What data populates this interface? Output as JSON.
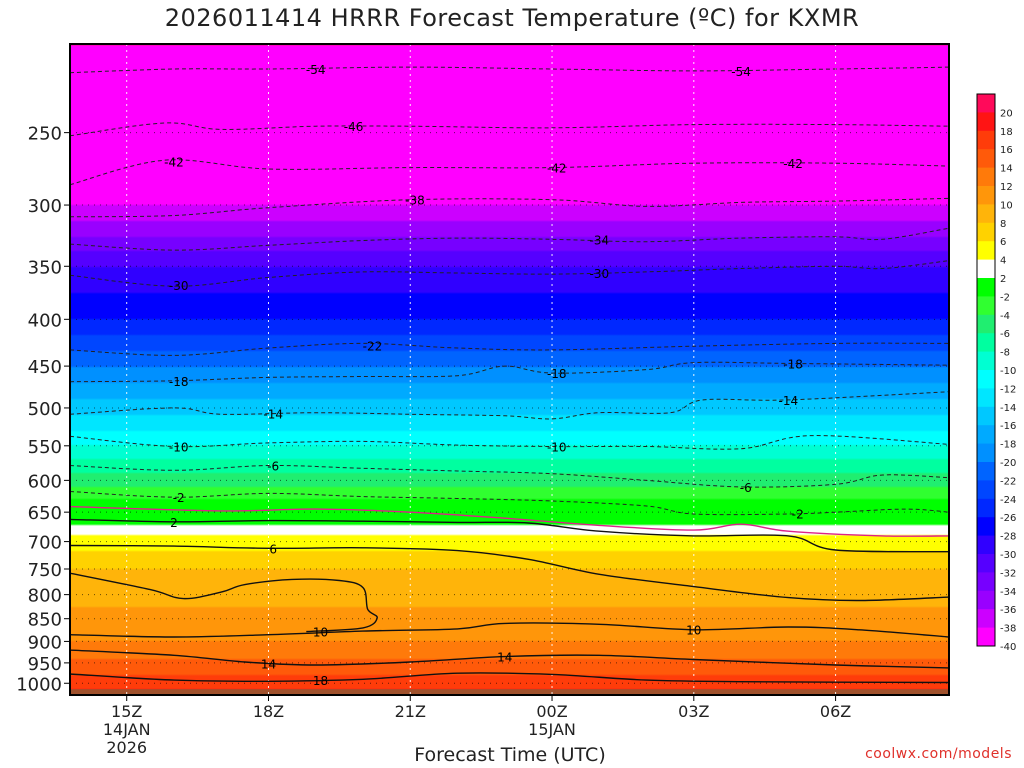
{
  "chart_data": {
    "type": "heatmap",
    "title": "2026011414 HRRR Forecast Temperature (ºC) for KXMR",
    "xlabel": "Forecast Time (UTC)",
    "ylabel": "",
    "credit": "coolwx.com/models",
    "x_range_hours": [
      -1.2,
      17.4
    ],
    "y_range_hpa": [
      1030,
      200
    ],
    "x_ticks": [
      {
        "h": 0,
        "lines": [
          "15Z",
          "14JAN",
          "2026"
        ]
      },
      {
        "h": 3,
        "lines": [
          "18Z"
        ]
      },
      {
        "h": 6,
        "lines": [
          "21Z"
        ]
      },
      {
        "h": 9,
        "lines": [
          "00Z",
          "15JAN"
        ]
      },
      {
        "h": 12,
        "lines": [
          "03Z"
        ]
      },
      {
        "h": 15,
        "lines": [
          "06Z"
        ]
      }
    ],
    "y_ticks": [
      250,
      300,
      350,
      400,
      450,
      500,
      550,
      600,
      650,
      700,
      750,
      800,
      850,
      900,
      950,
      1000
    ],
    "y_tick_labels": [
      "250",
      "300",
      "350",
      "400",
      "450",
      "500",
      "550",
      "600",
      "650",
      "700",
      "750",
      "800",
      "850",
      "900",
      "950",
      "1000"
    ],
    "colorbar": {
      "levels": [
        20,
        18,
        16,
        14,
        12,
        10,
        8,
        6,
        4,
        2,
        -2,
        -4,
        -6,
        -8,
        -10,
        -12,
        -14,
        -16,
        -18,
        -20,
        -22,
        -24,
        -26,
        -28,
        -30,
        -32,
        -34,
        -36,
        -38,
        -40
      ],
      "labels": [
        "20",
        "18",
        "16",
        "14",
        "12",
        "10",
        "8",
        "6",
        "4",
        "2",
        "-2",
        "-4",
        "-6",
        "-8",
        "-10",
        "-12",
        "-14",
        "-16",
        "-18",
        "-20",
        "-22",
        "-24",
        "-26",
        "-28",
        "-30",
        "-32",
        "-34",
        "-36",
        "-38",
        "-40"
      ],
      "colors": [
        "#ff0a5a",
        "#ff1414",
        "#ff3c0a",
        "#ff5a0a",
        "#ff7a0a",
        "#ff960a",
        "#ffb40a",
        "#ffd200",
        "#ffff00",
        "#ffffff",
        "#00ff00",
        "#30ff30",
        "#20ee70",
        "#00ffa0",
        "#00ffd2",
        "#00ffff",
        "#00e6ff",
        "#00c8ff",
        "#00aaff",
        "#0090ff",
        "#0064ff",
        "#0046ff",
        "#0028ff",
        "#0000ff",
        "#3000ff",
        "#5500ff",
        "#7700ff",
        "#9900ff",
        "#cc00ff",
        "#ff00ff"
      ]
    },
    "ground_color": "#a0522d",
    "profile_pressures_hpa": [
      200,
      250,
      300,
      350,
      400,
      450,
      500,
      550,
      600,
      650,
      700,
      750,
      800,
      850,
      900,
      950,
      1000,
      1030
    ],
    "profile_temps_c": [
      -58,
      -48,
      -38,
      -30,
      -26,
      -20,
      -15,
      -10,
      -5,
      0,
      5,
      8,
      9.5,
      10.5,
      12,
      14.5,
      17,
      19
    ],
    "contours": [
      {
        "value": -54,
        "label": "-54",
        "dashed": true,
        "color": "#222222",
        "points": [
          [
            -1.2,
            215
          ],
          [
            1,
            213
          ],
          [
            3,
            213
          ],
          [
            6,
            212
          ],
          [
            9,
            213
          ],
          [
            12,
            214
          ],
          [
            15,
            213
          ],
          [
            17.4,
            212
          ]
        ]
      },
      {
        "value": -46,
        "label": "-46",
        "dashed": true,
        "color": "#222222",
        "points": [
          [
            -1.2,
            252
          ],
          [
            0.8,
            244
          ],
          [
            2,
            248
          ],
          [
            4,
            246
          ],
          [
            6,
            246
          ],
          [
            9,
            247
          ],
          [
            12,
            245
          ],
          [
            15,
            245
          ],
          [
            17.4,
            246
          ]
        ]
      },
      {
        "value": -42,
        "label": "-42",
        "dashed": true,
        "color": "#222222",
        "points": [
          [
            -1.2,
            285
          ],
          [
            0.8,
            268
          ],
          [
            3,
            274
          ],
          [
            6,
            273
          ],
          [
            9,
            273
          ],
          [
            12,
            270
          ],
          [
            15,
            270
          ],
          [
            17.4,
            272
          ]
        ]
      },
      {
        "value": -38,
        "label": "-38",
        "dashed": true,
        "color": "#222222",
        "points": [
          [
            -1.2,
            309
          ],
          [
            1,
            308
          ],
          [
            3,
            302
          ],
          [
            6,
            296
          ],
          [
            9,
            296
          ],
          [
            11,
            301
          ],
          [
            13,
            298
          ],
          [
            15,
            297
          ],
          [
            17.4,
            295
          ]
        ]
      },
      {
        "value": -34,
        "label": "-34",
        "dashed": true,
        "color": "#222222",
        "points": [
          [
            -1.2,
            331
          ],
          [
            1,
            336
          ],
          [
            3,
            332
          ],
          [
            5,
            328
          ],
          [
            7,
            326
          ],
          [
            9,
            327
          ],
          [
            11,
            329
          ],
          [
            13,
            326
          ],
          [
            15,
            325
          ],
          [
            16,
            327
          ],
          [
            17.4,
            318
          ]
        ]
      },
      {
        "value": -30,
        "label": "-30",
        "dashed": true,
        "color": "#222222",
        "points": [
          [
            -1.2,
            358
          ],
          [
            1,
            368
          ],
          [
            3,
            360
          ],
          [
            5,
            355
          ],
          [
            7,
            356
          ],
          [
            9,
            357
          ],
          [
            11,
            355
          ],
          [
            13,
            352
          ],
          [
            15,
            350
          ],
          [
            16,
            352
          ],
          [
            17.4,
            345
          ]
        ]
      },
      {
        "value": -22,
        "label": "-22",
        "dashed": true,
        "color": "#222222",
        "points": [
          [
            -1.2,
            432
          ],
          [
            1,
            438
          ],
          [
            3,
            430
          ],
          [
            5,
            425
          ],
          [
            7,
            430
          ],
          [
            9,
            432
          ],
          [
            12,
            428
          ],
          [
            15,
            425
          ],
          [
            17.4,
            425
          ]
        ]
      },
      {
        "value": -18,
        "label": "-18",
        "dashed": true,
        "color": "#222222",
        "points": [
          [
            -1.2,
            468
          ],
          [
            1,
            467
          ],
          [
            3,
            463
          ],
          [
            5,
            462
          ],
          [
            7,
            461
          ],
          [
            8,
            450
          ],
          [
            9,
            458
          ],
          [
            11,
            454
          ],
          [
            12,
            446
          ],
          [
            14,
            447
          ],
          [
            17.4,
            449
          ]
        ]
      },
      {
        "value": -14,
        "label": "-14",
        "dashed": true,
        "color": "#222222",
        "points": [
          [
            -1.2,
            508
          ],
          [
            1,
            500
          ],
          [
            2,
            508
          ],
          [
            4,
            506
          ],
          [
            6,
            508
          ],
          [
            8,
            510
          ],
          [
            9,
            514
          ],
          [
            10,
            506
          ],
          [
            11.5,
            506
          ],
          [
            12.2,
            490
          ],
          [
            14,
            490
          ],
          [
            17.4,
            480
          ]
        ]
      },
      {
        "value": -10,
        "label": "-10",
        "dashed": true,
        "color": "#222222",
        "points": [
          [
            -1.2,
            537
          ],
          [
            1,
            551
          ],
          [
            3,
            546
          ],
          [
            5,
            544
          ],
          [
            7,
            549
          ],
          [
            9,
            551
          ],
          [
            11,
            551
          ],
          [
            13,
            554
          ],
          [
            14.5,
            536
          ],
          [
            17.4,
            548
          ]
        ]
      },
      {
        "value": -6,
        "label": "-6",
        "dashed": true,
        "color": "#222222",
        "points": [
          [
            -1.2,
            578
          ],
          [
            1,
            585
          ],
          [
            3,
            578
          ],
          [
            5,
            582
          ],
          [
            7,
            586
          ],
          [
            9,
            590
          ],
          [
            11,
            600
          ],
          [
            13,
            610
          ],
          [
            15,
            606
          ],
          [
            16,
            592
          ],
          [
            17.4,
            596
          ]
        ]
      },
      {
        "value": -2,
        "label": "-2",
        "dashed": true,
        "color": "#222222",
        "points": [
          [
            -1.2,
            617
          ],
          [
            1,
            626
          ],
          [
            3,
            620
          ],
          [
            5,
            625
          ],
          [
            7,
            628
          ],
          [
            9,
            632
          ],
          [
            11,
            640
          ],
          [
            12,
            653
          ],
          [
            14,
            653
          ],
          [
            15,
            650
          ],
          [
            16.5,
            645
          ],
          [
            17.4,
            650
          ]
        ]
      },
      {
        "value": 0,
        "label": "",
        "dashed": false,
        "color": "#dd2288",
        "points": [
          [
            -1.2,
            641
          ],
          [
            2,
            648
          ],
          [
            4,
            645
          ],
          [
            6,
            650
          ],
          [
            8,
            660
          ],
          [
            10,
            672
          ],
          [
            12,
            680
          ],
          [
            13,
            670
          ],
          [
            14,
            682
          ],
          [
            16,
            690
          ],
          [
            17.4,
            690
          ]
        ]
      },
      {
        "value": 2,
        "label": "2",
        "dashed": false,
        "color": "#111111",
        "points": [
          [
            -1.2,
            662
          ],
          [
            1,
            666
          ],
          [
            3,
            664
          ],
          [
            5,
            665
          ],
          [
            7,
            667
          ],
          [
            8.5,
            668
          ],
          [
            10,
            682
          ],
          [
            12,
            690
          ],
          [
            14,
            690
          ],
          [
            15,
            715
          ],
          [
            17.4,
            718
          ]
        ]
      },
      {
        "value": 6,
        "label": "6",
        "dashed": false,
        "color": "#111111",
        "points": [
          [
            -1.2,
            707
          ],
          [
            1,
            708
          ],
          [
            3,
            712
          ],
          [
            5,
            711
          ],
          [
            7,
            716
          ],
          [
            8.5,
            732
          ],
          [
            10,
            760
          ],
          [
            12,
            784
          ],
          [
            14,
            806
          ],
          [
            15.5,
            812
          ],
          [
            17.4,
            805
          ]
        ]
      },
      {
        "value": 8,
        "label": "",
        "dashed": false,
        "color": "#111111",
        "points": [
          [
            -1.2,
            758
          ],
          [
            0.5,
            790
          ],
          [
            1.2,
            808
          ],
          [
            2,
            795
          ],
          [
            2.5,
            780
          ],
          [
            3.5,
            770
          ],
          [
            4.5,
            772
          ],
          [
            5,
            786
          ],
          [
            5.1,
            830
          ],
          [
            5.3,
            848
          ],
          [
            5,
            870
          ],
          [
            3.8,
            878
          ]
        ]
      },
      {
        "value": 10,
        "label": "10",
        "dashed": false,
        "color": "#111111",
        "points": [
          [
            -1.2,
            885
          ],
          [
            1,
            890
          ],
          [
            3,
            885
          ],
          [
            5,
            877
          ],
          [
            7,
            872
          ],
          [
            8,
            860
          ],
          [
            10,
            862
          ],
          [
            12,
            874
          ],
          [
            14,
            868
          ],
          [
            15.5,
            874
          ],
          [
            17.4,
            890
          ]
        ]
      },
      {
        "value": 14,
        "label": "14",
        "dashed": false,
        "color": "#111111",
        "points": [
          [
            -1.2,
            920
          ],
          [
            1,
            932
          ],
          [
            2.5,
            948
          ],
          [
            4,
            955
          ],
          [
            6,
            948
          ],
          [
            8,
            935
          ],
          [
            10,
            932
          ],
          [
            12,
            942
          ],
          [
            15,
            955
          ],
          [
            17.4,
            962
          ]
        ]
      },
      {
        "value": 18,
        "label": "18",
        "dashed": false,
        "color": "#111111",
        "points": [
          [
            -1.2,
            977
          ],
          [
            1,
            992
          ],
          [
            3,
            995
          ],
          [
            5,
            990
          ],
          [
            7,
            975
          ],
          [
            9,
            978
          ],
          [
            11,
            992
          ],
          [
            13,
            996
          ],
          [
            17.4,
            998
          ]
        ]
      }
    ],
    "contour_labels": [
      {
        "text": "-54",
        "h": 4.0,
        "p": 213
      },
      {
        "text": "-54",
        "h": 13.0,
        "p": 214
      },
      {
        "text": "-46",
        "h": 4.8,
        "p": 246
      },
      {
        "text": "-42",
        "h": 1.0,
        "p": 269
      },
      {
        "text": "-42",
        "h": 9.1,
        "p": 273
      },
      {
        "text": "-42",
        "h": 14.1,
        "p": 270
      },
      {
        "text": "-38",
        "h": 6.1,
        "p": 296
      },
      {
        "text": "-34",
        "h": 10.0,
        "p": 327
      },
      {
        "text": "-30",
        "h": 1.1,
        "p": 367
      },
      {
        "text": "-30",
        "h": 10.0,
        "p": 356
      },
      {
        "text": "-22",
        "h": 5.2,
        "p": 427
      },
      {
        "text": "-18",
        "h": 1.1,
        "p": 467
      },
      {
        "text": "-18",
        "h": 9.1,
        "p": 458
      },
      {
        "text": "-18",
        "h": 14.1,
        "p": 447
      },
      {
        "text": "-14",
        "h": 3.1,
        "p": 507
      },
      {
        "text": "-14",
        "h": 14.0,
        "p": 490
      },
      {
        "text": "-10",
        "h": 1.1,
        "p": 551
      },
      {
        "text": "-10",
        "h": 9.1,
        "p": 551
      },
      {
        "text": "-6",
        "h": 3.1,
        "p": 578
      },
      {
        "text": "-6",
        "h": 13.1,
        "p": 610
      },
      {
        "text": "-2",
        "h": 1.1,
        "p": 626
      },
      {
        "text": "-2",
        "h": 14.2,
        "p": 652
      },
      {
        "text": "2",
        "h": 1.0,
        "p": 666
      },
      {
        "text": "6",
        "h": 3.1,
        "p": 712
      },
      {
        "text": "10",
        "h": 4.1,
        "p": 878
      },
      {
        "text": "10",
        "h": 12.0,
        "p": 873
      },
      {
        "text": "14",
        "h": 3.0,
        "p": 952
      },
      {
        "text": "14",
        "h": 8.0,
        "p": 935
      },
      {
        "text": "18",
        "h": 4.1,
        "p": 992
      }
    ]
  }
}
